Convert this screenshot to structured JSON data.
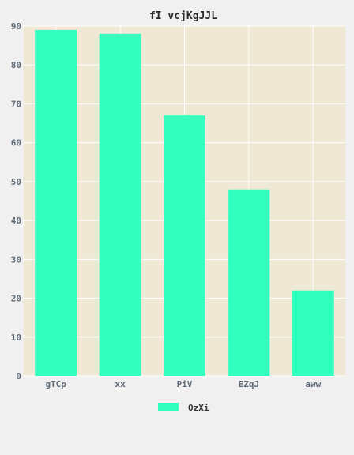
{
  "chart_data": {
    "type": "bar",
    "title": "fI vcjKgJJL",
    "xlabel": "",
    "ylabel": "",
    "categories": [
      "gTCp",
      "xx",
      "PiV",
      "EZqJ",
      "aww"
    ],
    "series": [
      {
        "name": "OzXi",
        "values": [
          89,
          88,
          67,
          48,
          22
        ],
        "color": "#33ffbf"
      }
    ],
    "ylim": [
      0,
      90
    ],
    "yticks": [
      0,
      10,
      20,
      30,
      40,
      50,
      60,
      70,
      80,
      90
    ],
    "grid": true,
    "legend_position": "bottom-center"
  },
  "colors": {
    "page_background": "#f0f0f0",
    "plot_background": "#efe8d5",
    "gridline": "#ffffff",
    "tick_text": "#5f6b78",
    "title_text": "#2a2a2a"
  }
}
